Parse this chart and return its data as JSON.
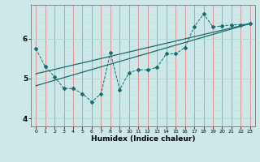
{
  "title": "",
  "xlabel": "Humidex (Indice chaleur)",
  "ylabel": "",
  "bg_color": "#cce8e8",
  "line_color": "#1a6b6b",
  "grid_color_v": "#e88080",
  "grid_color_h": "#e0f0f0",
  "xlim": [
    -0.5,
    23.5
  ],
  "ylim": [
    3.8,
    6.85
  ],
  "xticks": [
    0,
    1,
    2,
    3,
    4,
    5,
    6,
    7,
    8,
    9,
    10,
    11,
    12,
    13,
    14,
    15,
    16,
    17,
    18,
    19,
    20,
    21,
    22,
    23
  ],
  "yticks": [
    4,
    5,
    6
  ],
  "data_x": [
    0,
    1,
    2,
    3,
    4,
    5,
    6,
    7,
    8,
    9,
    10,
    11,
    12,
    13,
    14,
    15,
    16,
    17,
    18,
    19,
    20,
    21,
    22,
    23
  ],
  "data_y": [
    5.75,
    5.3,
    5.05,
    4.75,
    4.75,
    4.62,
    4.42,
    4.62,
    5.65,
    4.72,
    5.15,
    5.22,
    5.22,
    5.28,
    5.62,
    5.62,
    5.78,
    6.3,
    6.62,
    6.3,
    6.32,
    6.35,
    6.35,
    6.38
  ],
  "trend1_x": [
    0,
    23
  ],
  "trend1_y": [
    4.82,
    6.38
  ],
  "trend2_x": [
    0,
    23
  ],
  "trend2_y": [
    5.12,
    6.38
  ]
}
